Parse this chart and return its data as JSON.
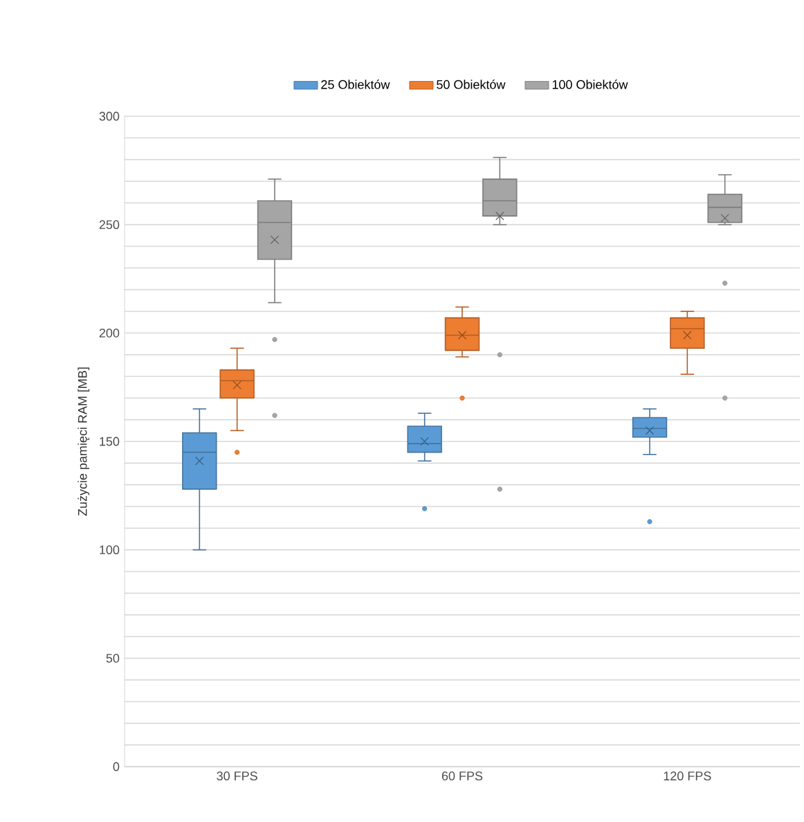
{
  "chart_data": {
    "type": "box",
    "ylabel": "Zużycie pamięci RAM [MB]",
    "categories": [
      "30 FPS",
      "60 FPS",
      "120 FPS"
    ],
    "ylim": [
      0,
      300
    ],
    "yticks": [
      0,
      50,
      100,
      150,
      200,
      250,
      300
    ],
    "grid": "y",
    "legend": "top",
    "series": [
      {
        "name": "25 Obiektów",
        "color": "#5b9bd5",
        "boxes": [
          {
            "low": 100,
            "q1": 128,
            "median": 145,
            "q3": 154,
            "high": 165,
            "mean": 141
          },
          {
            "low": 141,
            "q1": 145,
            "median": 149,
            "q3": 157,
            "high": 163,
            "mean": 150,
            "outliers": [
              119
            ]
          },
          {
            "low": 144,
            "q1": 152,
            "median": 156,
            "q3": 161,
            "high": 165,
            "mean": 155,
            "outliers": [
              113
            ]
          }
        ]
      },
      {
        "name": "50 Obiektów",
        "color": "#ed7d31",
        "boxes": [
          {
            "low": 155,
            "q1": 170,
            "median": 178,
            "q3": 183,
            "high": 193,
            "mean": 176,
            "outliers": [
              145
            ]
          },
          {
            "low": 189,
            "q1": 192,
            "median": 199,
            "q3": 207,
            "high": 212,
            "mean": 199,
            "outliers": [
              170
            ]
          },
          {
            "low": 181,
            "q1": 193,
            "median": 202,
            "q3": 207,
            "high": 210,
            "mean": 199
          }
        ]
      },
      {
        "name": "100 Obiektów",
        "color": "#a5a5a5",
        "boxes": [
          {
            "low": 214,
            "q1": 234,
            "median": 251,
            "q3": 261,
            "high": 271,
            "mean": 243,
            "outliers": [
              197,
              162
            ]
          },
          {
            "low": 250,
            "q1": 254,
            "median": 261,
            "q3": 271,
            "high": 281,
            "mean": 254,
            "outliers": [
              190,
              128
            ]
          },
          {
            "low": 250,
            "q1": 251,
            "median": 258,
            "q3": 264,
            "high": 273,
            "mean": 253,
            "outliers": [
              223,
              170
            ]
          }
        ]
      }
    ]
  }
}
